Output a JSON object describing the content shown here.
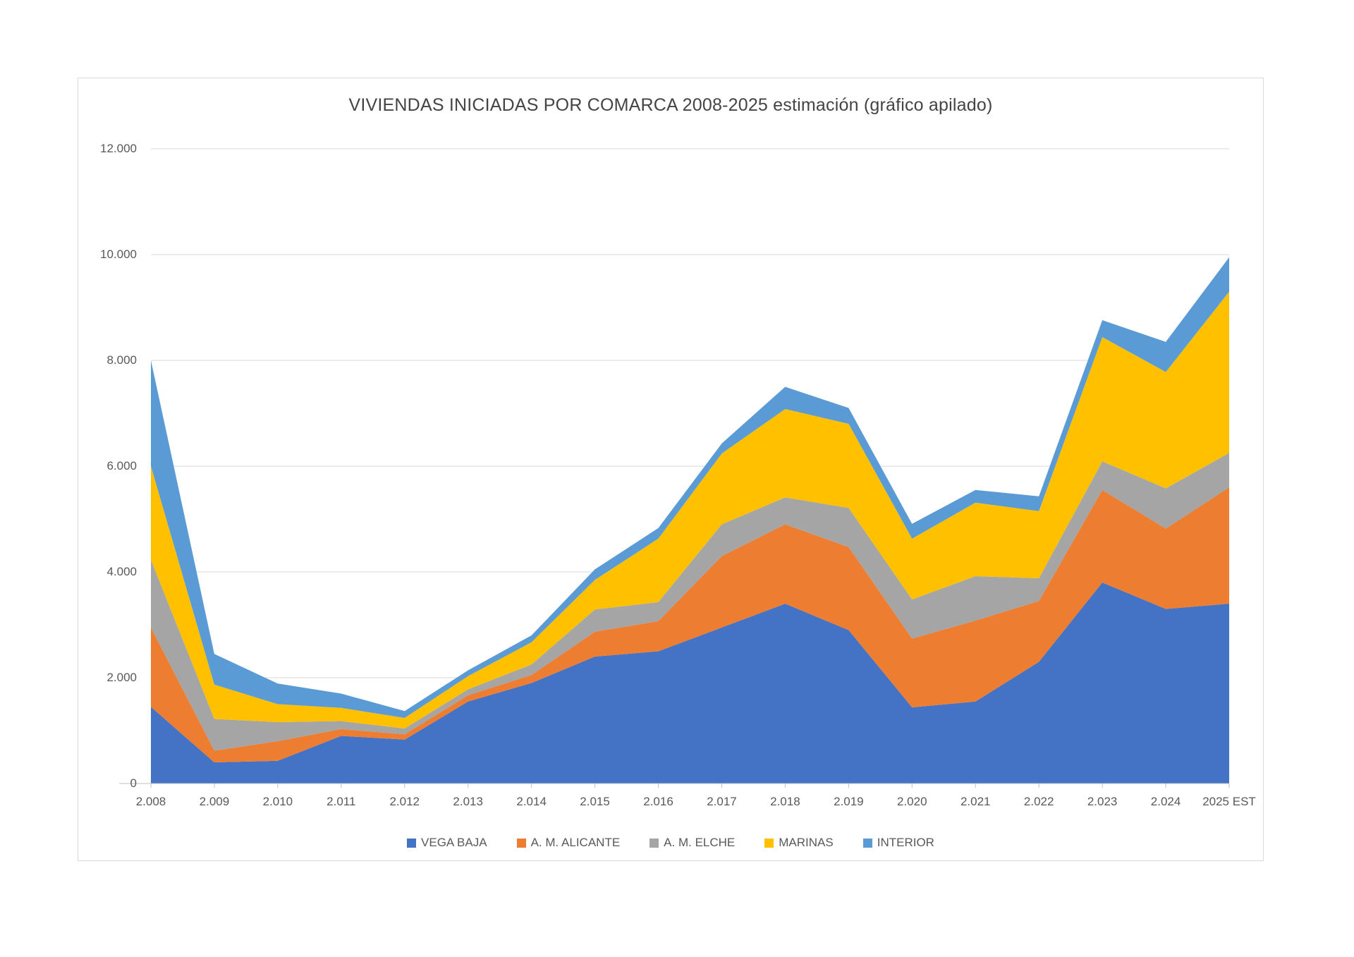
{
  "title": "VIVIENDAS INICIADAS POR COMARCA 2008-2025 estimación (gráfico apilado)",
  "colors": {
    "gridline": "#d9d9d9",
    "axis": "#bfbfbf",
    "text": "#595959",
    "frame_border": "#d9d9d9",
    "background": "#ffffff"
  },
  "chart_data": {
    "type": "area",
    "stacked": true,
    "title": "VIVIENDAS INICIADAS POR COMARCA 2008-2025 estimación (gráfico apilado)",
    "xlabel": "",
    "ylabel": "",
    "grid": true,
    "legend_position": "bottom",
    "ylim": [
      0,
      12000
    ],
    "ytick_step": 2000,
    "ytick_labels": [
      "0",
      "2.000",
      "4.000",
      "6.000",
      "8.000",
      "10.000",
      "12.000"
    ],
    "categories": [
      "2.008",
      "2.009",
      "2.010",
      "2.011",
      "2.012",
      "2.013",
      "2.014",
      "2.015",
      "2.016",
      "2.017",
      "2.018",
      "2.019",
      "2.020",
      "2.021",
      "2.022",
      "2.023",
      "2.024",
      "2025 EST"
    ],
    "series": [
      {
        "name": "VEGA BAJA",
        "color": "#4472C4",
        "values": [
          1450,
          400,
          430,
          900,
          830,
          1550,
          1900,
          2400,
          2500,
          2950,
          3400,
          2900,
          1440,
          1550,
          2300,
          3800,
          3300,
          3400
        ]
      },
      {
        "name": "A. M. ALICANTE",
        "color": "#ED7D31",
        "values": [
          1500,
          220,
          370,
          130,
          100,
          120,
          150,
          470,
          570,
          1350,
          1500,
          1570,
          1300,
          1530,
          1150,
          1750,
          1520,
          2200
        ]
      },
      {
        "name": "A. M. ELCHE",
        "color": "#A5A5A5",
        "values": [
          1280,
          600,
          360,
          150,
          110,
          110,
          200,
          420,
          360,
          600,
          510,
          740,
          740,
          840,
          430,
          540,
          760,
          650
        ]
      },
      {
        "name": "MARINAS",
        "color": "#FFC000",
        "values": [
          1770,
          650,
          340,
          250,
          200,
          250,
          420,
          560,
          1200,
          1340,
          1670,
          1590,
          1150,
          1390,
          1270,
          2350,
          2200,
          3050
        ]
      },
      {
        "name": "INTERIOR",
        "color": "#5B9BD5",
        "values": [
          2000,
          580,
          390,
          270,
          130,
          110,
          130,
          200,
          200,
          190,
          420,
          300,
          280,
          240,
          280,
          320,
          570,
          650
        ]
      }
    ]
  }
}
